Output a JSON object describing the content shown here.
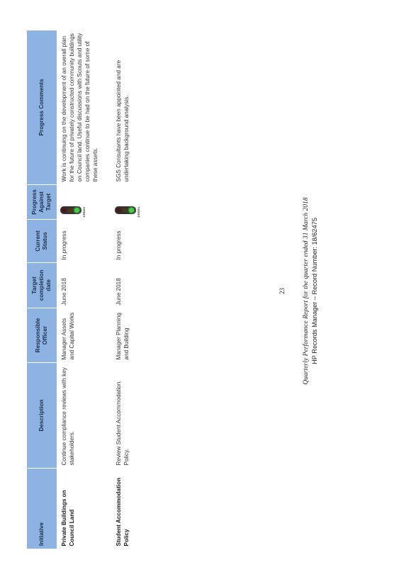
{
  "table": {
    "headers": [
      "Initiative",
      "Description",
      "Responsible Officer",
      "Target completion date",
      "Current Status",
      "Progress Against Target",
      "Progress Comments"
    ],
    "rows": [
      {
        "initiative": "Private Buildings on Council Land",
        "description": "Continue compliance reviews with key stakeholders.",
        "officer": "Manager Assets and Capital Works",
        "date": "June 2018",
        "status": "In progress",
        "progress": "GREEN",
        "comments": "Work is continuing on the development of an overall plan for the future of privately constructed community buildings on Council land. Useful discussions with Scouts and utility companies continue to be had on the future of some of these assets."
      },
      {
        "initiative": "Student Accommodation Policy",
        "description": "Review Student Accommodation Policy.",
        "officer": "Manager Planning and Building",
        "date": "June 2018",
        "status": "In progress",
        "progress": "GREEN",
        "comments": "SGS Consultants have been appointed and are undertaking background analysis."
      }
    ]
  },
  "footer": {
    "page_number": "23",
    "report_title": "Quarterly Performance Report for the quarter ended 31 March 2018",
    "record_line": "HP Records Manager – Record Number: 18/62475"
  },
  "colors": {
    "header_bg": "#8db3e2",
    "status_green": "#3cd23c"
  }
}
